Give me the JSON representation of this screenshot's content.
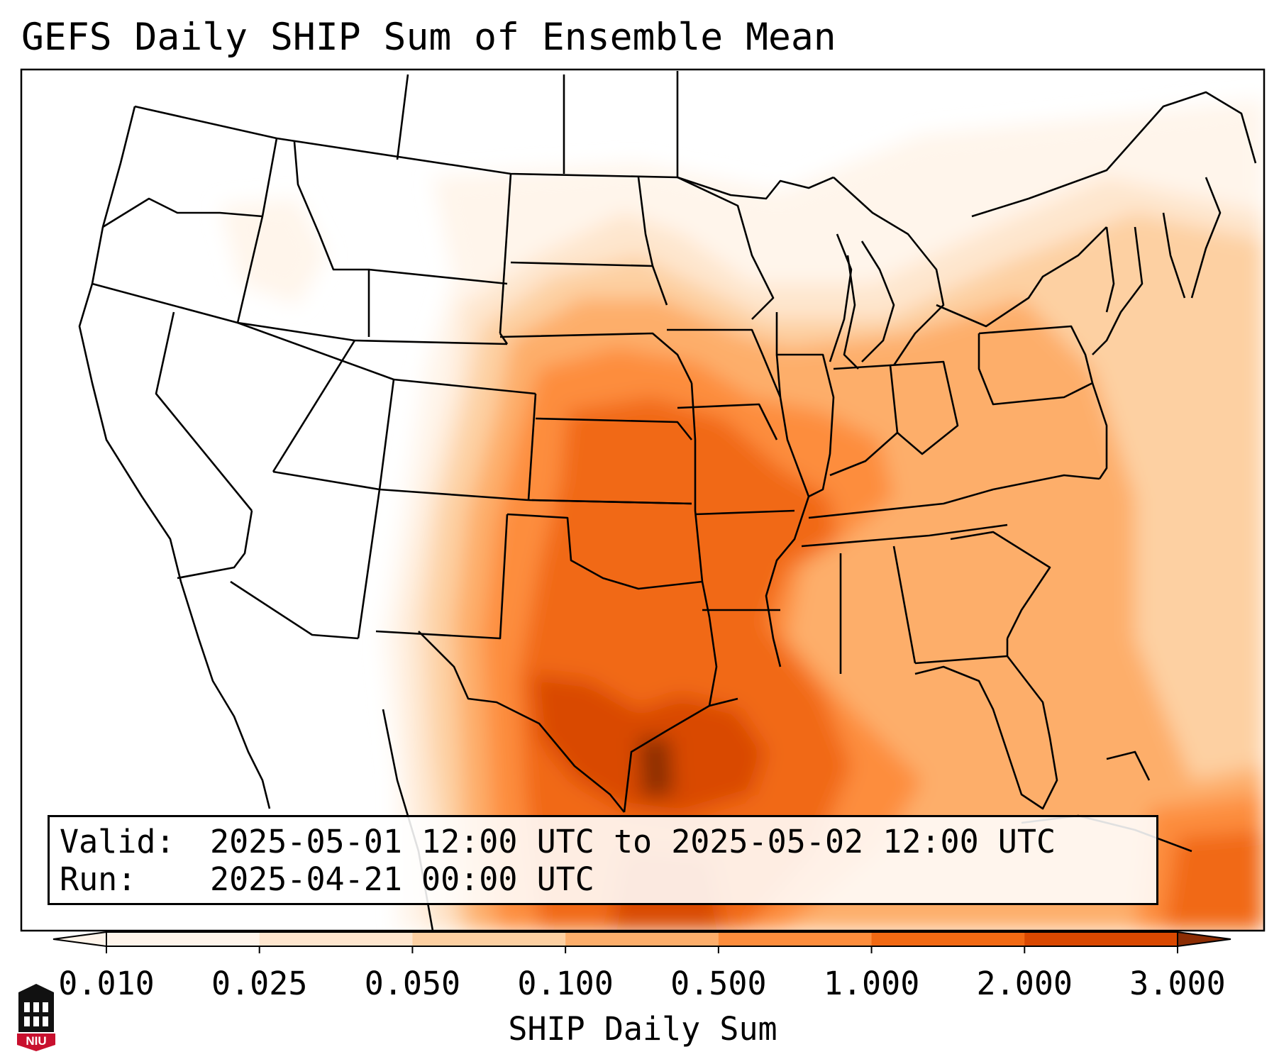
{
  "title": "GEFS Daily SHIP Sum of Ensemble Mean",
  "info": {
    "valid_label": "Valid:",
    "valid_value": "2025-05-01 12:00 UTC to 2025-05-02 12:00 UTC",
    "run_label": "Run:",
    "run_value": "2025-04-21 00:00 UTC"
  },
  "colorbar": {
    "title": "SHIP Daily Sum",
    "tick_labels": [
      "0.010",
      "0.025",
      "0.050",
      "0.100",
      "0.500",
      "1.000",
      "2.000",
      "3.000"
    ],
    "colors": [
      "#fff5eb",
      "#fee6ce",
      "#fdd0a2",
      "#fdae6b",
      "#fd8d3c",
      "#f16913",
      "#d94801",
      "#8c2d04"
    ],
    "extend": "both"
  },
  "logo": {
    "name": "NIU"
  },
  "chart_data": {
    "type": "heatmap",
    "title": "GEFS Daily SHIP Sum of Ensemble Mean",
    "colorbar_label": "SHIP Daily Sum",
    "levels": [
      0.01,
      0.025,
      0.05,
      0.1,
      0.5,
      1.0,
      2.0,
      3.0
    ],
    "scale": "categorical",
    "region": "Contiguous United States",
    "valid_start": "2025-05-01 12:00 UTC",
    "valid_end": "2025-05-02 12:00 UTC",
    "run": "2025-04-21 00:00 UTC"
  }
}
